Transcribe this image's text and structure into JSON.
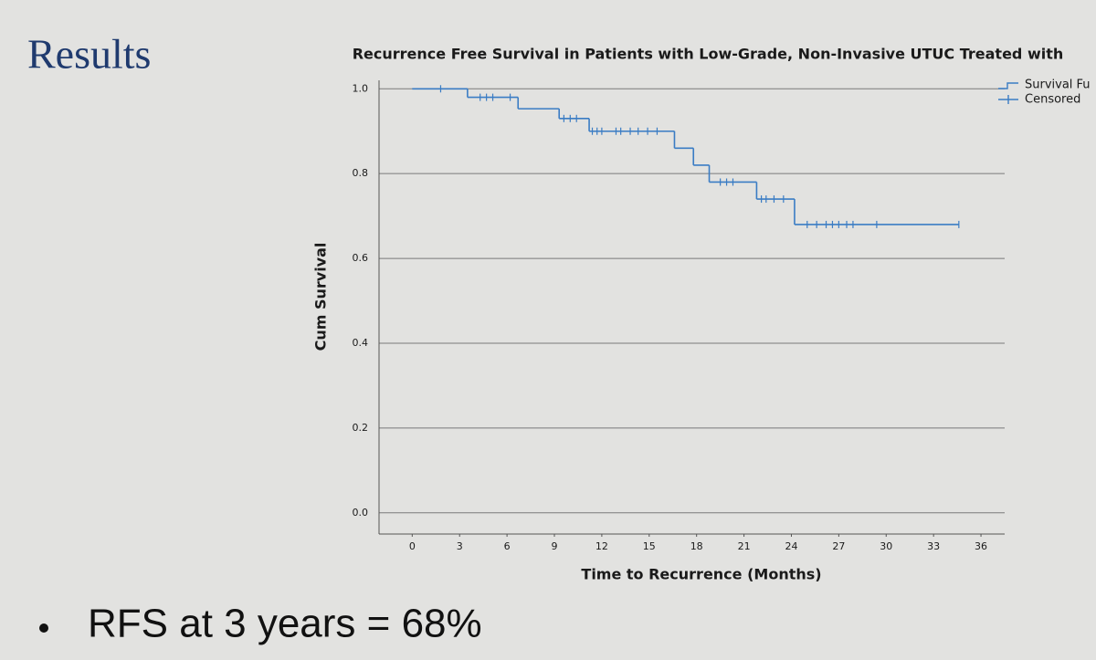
{
  "slide": {
    "heading": "Results",
    "bullet": "RFS at 3 years = 68%"
  },
  "chart_data": {
    "type": "step",
    "title": "Recurrence Free Survival in Patients with Low-Grade, Non-Invasive UTUC Treated with",
    "x_label": "Time to Recurrence (Months)",
    "y_label": "Cum Survival",
    "xlim": [
      -2.1,
      37.5
    ],
    "ylim": [
      -0.05,
      1.02
    ],
    "xticks": [
      0,
      3,
      6,
      9,
      12,
      15,
      18,
      21,
      24,
      27,
      30,
      33,
      36
    ],
    "yticks": [
      {
        "value": 0,
        "label": "0.0"
      },
      0.2,
      0.4,
      0.6,
      0.8,
      {
        "value": 1,
        "label": "1.0"
      }
    ],
    "grid": true,
    "series": [
      {
        "name": "Survival Fu",
        "color": "#3a7cc4",
        "x": [
          0,
          3.5,
          6.7,
          9.3,
          11.2,
          16.6,
          17.8,
          18.8,
          21.8,
          24.2,
          34.6
        ],
        "values": [
          1,
          0.98,
          0.953,
          0.93,
          0.9,
          0.86,
          0.82,
          0.78,
          0.74,
          0.68,
          0.68
        ]
      },
      {
        "name": "Censored",
        "color": "#3a7cc4",
        "x": [
          1.8,
          4.3,
          4.7,
          5.1,
          6.2,
          9.6,
          10,
          10.4,
          11.4,
          11.7,
          12,
          12.9,
          13.2,
          13.8,
          14.3,
          14.9,
          15.5,
          19.5,
          19.9,
          20.3,
          22.1,
          22.4,
          22.9,
          23.5,
          25,
          25.6,
          26.2,
          26.6,
          27,
          27.5,
          27.9,
          29.4,
          34.6
        ],
        "values": [
          1,
          0.98,
          0.98,
          0.98,
          0.98,
          0.93,
          0.93,
          0.93,
          0.9,
          0.9,
          0.9,
          0.9,
          0.9,
          0.9,
          0.9,
          0.9,
          0.9,
          0.78,
          0.78,
          0.78,
          0.74,
          0.74,
          0.74,
          0.74,
          0.68,
          0.68,
          0.68,
          0.68,
          0.68,
          0.68,
          0.68,
          0.68,
          0.68
        ]
      }
    ]
  }
}
